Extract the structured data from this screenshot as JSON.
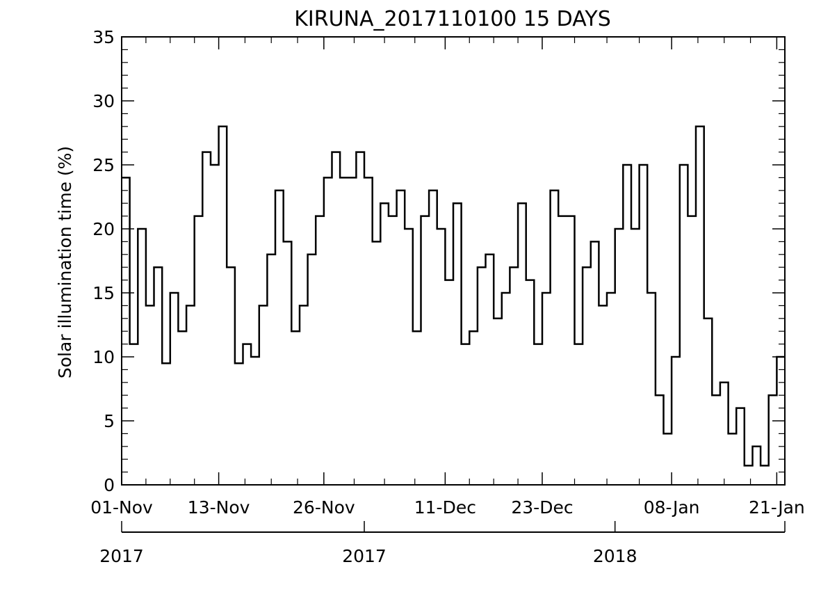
{
  "chart_data": {
    "type": "line",
    "step": true,
    "title": "KIRUNA_2017110100 15 DAYS",
    "ylabel": "Solar illumination time (%)",
    "xlabel": "",
    "ylim": [
      0,
      35
    ],
    "xlim": [
      "2017-11-01",
      "2018-01-21"
    ],
    "grid": false,
    "y_ticks": [
      0,
      5,
      10,
      15,
      20,
      25,
      30,
      35
    ],
    "x_ticks": [
      {
        "date": "2017-11-01",
        "label": "01-Nov"
      },
      {
        "date": "2017-11-13",
        "label": "13-Nov"
      },
      {
        "date": "2017-11-26",
        "label": "26-Nov"
      },
      {
        "date": "2017-12-11",
        "label": "11-Dec"
      },
      {
        "date": "2017-12-23",
        "label": "23-Dec"
      },
      {
        "date": "2018-01-08",
        "label": "08-Jan"
      },
      {
        "date": "2018-01-21",
        "label": "21-Jan"
      }
    ],
    "year_ticks": [
      {
        "date": "2017-11-01",
        "label": "2017"
      },
      {
        "date": "2017-12-01",
        "label": "2017"
      },
      {
        "date": "2018-01-01",
        "label": "2018"
      }
    ],
    "line_color": "#000000",
    "series": [
      {
        "x": [
          "2017-11-01",
          "2017-11-02",
          "2017-11-03",
          "2017-11-04",
          "2017-11-05",
          "2017-11-06",
          "2017-11-07",
          "2017-11-08",
          "2017-11-09",
          "2017-11-10",
          "2017-11-11",
          "2017-11-12",
          "2017-11-13",
          "2017-11-14",
          "2017-11-15",
          "2017-11-16",
          "2017-11-17",
          "2017-11-18",
          "2017-11-19",
          "2017-11-20",
          "2017-11-21",
          "2017-11-22",
          "2017-11-23",
          "2017-11-24",
          "2017-11-25",
          "2017-11-26",
          "2017-11-27",
          "2017-11-28",
          "2017-11-29",
          "2017-11-30",
          "2017-12-01",
          "2017-12-02",
          "2017-12-03",
          "2017-12-04",
          "2017-12-05",
          "2017-12-06",
          "2017-12-07",
          "2017-12-08",
          "2017-12-09",
          "2017-12-10",
          "2017-12-11",
          "2017-12-12",
          "2017-12-13",
          "2017-12-14",
          "2017-12-15",
          "2017-12-16",
          "2017-12-17",
          "2017-12-18",
          "2017-12-19",
          "2017-12-20",
          "2017-12-21",
          "2017-12-22",
          "2017-12-23",
          "2017-12-24",
          "2017-12-25",
          "2017-12-26",
          "2017-12-27",
          "2017-12-28",
          "2017-12-29",
          "2017-12-30",
          "2017-12-31",
          "2018-01-01",
          "2018-01-02",
          "2018-01-03",
          "2018-01-04",
          "2018-01-05",
          "2018-01-06",
          "2018-01-07",
          "2018-01-08",
          "2018-01-09",
          "2018-01-10",
          "2018-01-11",
          "2018-01-12",
          "2018-01-13",
          "2018-01-14",
          "2018-01-15",
          "2018-01-16",
          "2018-01-17",
          "2018-01-18",
          "2018-01-19",
          "2018-01-20",
          "2018-01-21"
        ],
        "values": [
          24,
          11,
          20,
          14,
          17,
          9.5,
          15,
          12,
          14,
          21,
          26,
          25,
          28,
          17,
          9.5,
          11,
          10,
          14,
          18,
          23,
          19,
          12,
          14,
          18,
          21,
          24,
          26,
          24,
          24,
          26,
          24,
          19,
          22,
          21,
          23,
          20,
          12,
          21,
          23,
          20,
          16,
          22,
          11,
          12,
          17,
          18,
          13,
          15,
          17,
          22,
          16,
          11,
          15,
          23,
          21,
          21,
          11,
          17,
          19,
          14,
          15,
          20,
          25,
          20,
          25,
          15,
          7,
          4,
          10,
          25,
          21,
          28,
          13,
          7,
          8,
          4,
          6,
          1.5,
          3,
          1.5,
          7,
          10
        ]
      }
    ]
  }
}
